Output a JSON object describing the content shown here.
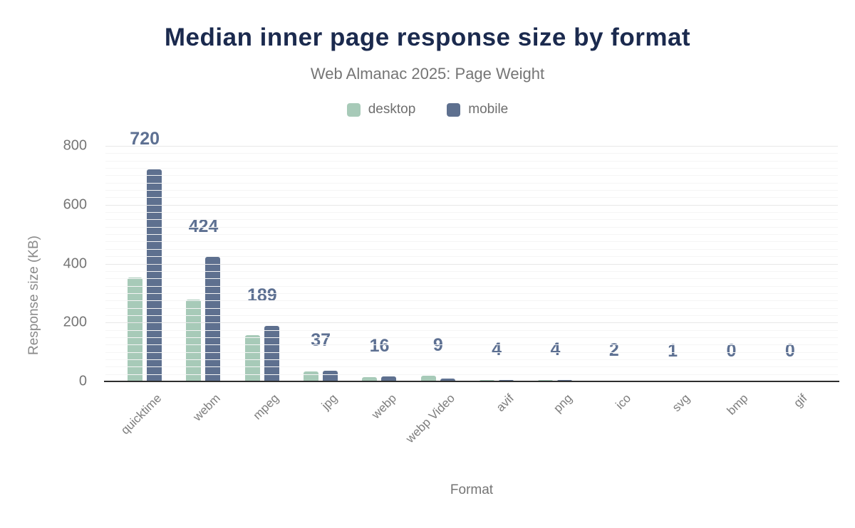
{
  "chart_data": {
    "type": "bar",
    "title": "Median inner page response size by format",
    "subtitle": "Web Almanac 2025: Page Weight",
    "xlabel": "Format",
    "ylabel": "Response size (KB)",
    "categories": [
      "quicktime",
      "webm",
      "mpeg",
      "jpg",
      "webp",
      "webp Video",
      "avif",
      "png",
      "ico",
      "svg",
      "bmp",
      "gif"
    ],
    "series": [
      {
        "name": "desktop",
        "color": "#a7cab8",
        "values": [
          352,
          279,
          158,
          34,
          14,
          19,
          6,
          6,
          1,
          1,
          0,
          0
        ]
      },
      {
        "name": "mobile",
        "color": "#5e708f",
        "values": [
          720,
          424,
          189,
          37,
          16,
          9,
          4,
          4,
          2,
          1,
          0,
          0
        ]
      }
    ],
    "bar_labels_series": "mobile",
    "bar_labels": [
      720,
      424,
      189,
      37,
      16,
      9,
      4,
      4,
      2,
      1,
      0,
      0
    ],
    "ylim": [
      0,
      800
    ],
    "ytick_step": 200,
    "ytick_labels": [
      "0",
      "200",
      "400",
      "600",
      "800"
    ],
    "minor_grid_step": 25,
    "grid": true,
    "legend_position": "top",
    "title_color": "#1b2a4e",
    "label_color": "#5d7092"
  }
}
